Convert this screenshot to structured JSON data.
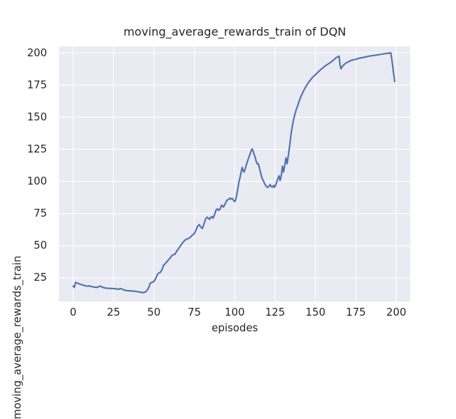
{
  "chart_data": {
    "type": "line",
    "title": "moving_average_rewards_train of DQN",
    "xlabel": "episodes",
    "ylabel": "moving_average_rewards_train",
    "x_ticks": [
      0,
      25,
      50,
      75,
      100,
      125,
      150,
      175,
      200
    ],
    "y_ticks": [
      25,
      50,
      75,
      100,
      125,
      150,
      175,
      200
    ],
    "xlim": [
      -8.8,
      208.6
    ],
    "ylim": [
      6.5,
      205.0
    ],
    "grid": true,
    "legend": null,
    "style": {
      "figure_background": "#ffffff",
      "axes_background": "#eaeaf2",
      "grid_color": "#ffffff",
      "text_color": "#262626",
      "line_color": "#4c72b0"
    },
    "series": [
      {
        "name": "moving_average_rewards_train",
        "color": "#4c72b0",
        "points": [
          [
            0,
            18.6
          ],
          [
            0.7,
            17.6
          ],
          [
            1.5,
            21.4
          ],
          [
            2.5,
            21.0
          ],
          [
            4,
            20.2
          ],
          [
            5,
            19.8
          ],
          [
            6,
            19.4
          ],
          [
            7,
            19.0
          ],
          [
            8,
            18.7
          ],
          [
            9,
            18.5
          ],
          [
            10,
            18.8
          ],
          [
            11,
            18.3
          ],
          [
            12,
            18.0
          ],
          [
            13,
            17.8
          ],
          [
            14,
            17.7
          ],
          [
            15,
            17.6
          ],
          [
            16,
            18.3
          ],
          [
            17,
            18.5
          ],
          [
            18,
            17.8
          ],
          [
            19,
            17.3
          ],
          [
            20,
            17.1
          ],
          [
            21,
            16.9
          ],
          [
            22,
            16.8
          ],
          [
            23,
            16.8
          ],
          [
            24,
            16.7
          ],
          [
            25,
            16.7
          ],
          [
            26,
            16.5
          ],
          [
            27,
            16.3
          ],
          [
            28,
            16.1
          ],
          [
            29,
            16.7
          ],
          [
            30,
            16.4
          ],
          [
            31,
            15.8
          ],
          [
            32,
            15.3
          ],
          [
            33,
            15.1
          ],
          [
            34,
            15.0
          ],
          [
            35,
            14.9
          ],
          [
            36,
            14.8
          ],
          [
            37,
            14.7
          ],
          [
            38,
            14.6
          ],
          [
            39,
            14.4
          ],
          [
            40,
            14.2
          ],
          [
            41,
            14.0
          ],
          [
            42,
            13.8
          ],
          [
            43,
            13.5
          ],
          [
            44,
            13.7
          ],
          [
            45,
            14.2
          ],
          [
            46,
            15.8
          ],
          [
            47,
            18.0
          ],
          [
            47.5,
            20.4
          ],
          [
            48,
            21.0
          ],
          [
            49,
            21.6
          ],
          [
            50,
            22.2
          ],
          [
            51,
            24.3
          ],
          [
            52,
            27.3
          ],
          [
            53,
            28.8
          ],
          [
            54,
            29.2
          ],
          [
            55,
            31.3
          ],
          [
            56,
            35.0
          ],
          [
            57,
            35.9
          ],
          [
            58,
            37.6
          ],
          [
            59,
            39.0
          ],
          [
            60,
            40.3
          ],
          [
            61,
            42.1
          ],
          [
            62,
            43.0
          ],
          [
            63,
            43.3
          ],
          [
            64,
            45.6
          ],
          [
            65,
            47.3
          ],
          [
            66,
            49.1
          ],
          [
            67,
            51.0
          ],
          [
            68,
            52.6
          ],
          [
            69,
            54.1
          ],
          [
            70,
            55.0
          ],
          [
            71,
            55.4
          ],
          [
            72,
            56.1
          ],
          [
            73,
            57.2
          ],
          [
            74,
            58.4
          ],
          [
            75,
            59.4
          ],
          [
            76,
            62.1
          ],
          [
            77,
            65.0
          ],
          [
            78,
            66.4
          ],
          [
            79,
            64.5
          ],
          [
            80,
            63.4
          ],
          [
            81,
            67.0
          ],
          [
            82,
            70.8
          ],
          [
            83,
            72.2
          ],
          [
            84,
            71.0
          ],
          [
            84.5,
            70.4
          ],
          [
            85,
            71.9
          ],
          [
            86,
            72.6
          ],
          [
            86.6,
            71.3
          ],
          [
            87.5,
            74.1
          ],
          [
            88.5,
            77.8
          ],
          [
            89.3,
            78.7
          ],
          [
            90,
            77.4
          ],
          [
            91,
            78.5
          ],
          [
            91.5,
            80.5
          ],
          [
            92,
            81.5
          ],
          [
            93,
            80.0
          ],
          [
            93.7,
            81.5
          ],
          [
            94.5,
            83.7
          ],
          [
            95,
            85.2
          ],
          [
            96,
            85.8
          ],
          [
            97,
            87.0
          ],
          [
            97.7,
            86.2
          ],
          [
            98.4,
            86.8
          ],
          [
            99.2,
            85.4
          ],
          [
            100,
            84.2
          ],
          [
            100.7,
            86.0
          ],
          [
            101.3,
            90.0
          ],
          [
            102,
            95.0
          ],
          [
            102.6,
            99.5
          ],
          [
            103.3,
            103.0
          ],
          [
            104,
            107.5
          ],
          [
            104.6,
            110.8
          ],
          [
            105.2,
            108.5
          ],
          [
            105.7,
            107.2
          ],
          [
            106.3,
            109.0
          ],
          [
            107,
            112.0
          ],
          [
            107.6,
            114.5
          ],
          [
            108.3,
            117.0
          ],
          [
            109,
            119.5
          ],
          [
            109.7,
            122.0
          ],
          [
            110.3,
            124.2
          ],
          [
            110.8,
            125.3
          ],
          [
            111.4,
            123.5
          ],
          [
            112,
            121.0
          ],
          [
            112.6,
            119.0
          ],
          [
            113.3,
            115.5
          ],
          [
            114,
            113.5
          ],
          [
            114.6,
            113.8
          ],
          [
            115.2,
            111.0
          ],
          [
            116,
            106.5
          ],
          [
            116.8,
            103.0
          ],
          [
            117.5,
            101.0
          ],
          [
            118.3,
            98.8
          ],
          [
            119,
            97.2
          ],
          [
            119.8,
            95.8
          ],
          [
            120.5,
            95.3
          ],
          [
            121.2,
            96.2
          ],
          [
            121.9,
            97.5
          ],
          [
            122.6,
            96.0
          ],
          [
            123.3,
            95.6
          ],
          [
            124,
            96.8
          ],
          [
            124.6,
            95.4
          ],
          [
            125.3,
            97.0
          ],
          [
            126,
            99.5
          ],
          [
            126.8,
            102.5
          ],
          [
            127.4,
            104.4
          ],
          [
            128.1,
            100.7
          ],
          [
            128.8,
            104.0
          ],
          [
            129.5,
            111.8
          ],
          [
            130.2,
            107.2
          ],
          [
            131,
            112.5
          ],
          [
            131.7,
            118.3
          ],
          [
            132.4,
            113.7
          ],
          [
            133.2,
            120.1
          ],
          [
            134,
            127.5
          ],
          [
            135,
            138.0
          ],
          [
            136,
            145.5
          ],
          [
            137,
            151.0
          ],
          [
            138,
            155.5
          ],
          [
            139,
            159.0
          ],
          [
            140,
            162.8
          ],
          [
            141,
            166.0
          ],
          [
            142,
            168.8
          ],
          [
            143,
            171.3
          ],
          [
            144,
            173.6
          ],
          [
            145,
            175.6
          ],
          [
            146,
            177.4
          ],
          [
            147,
            179.1
          ],
          [
            148,
            180.6
          ],
          [
            149,
            181.9
          ],
          [
            150,
            183.0
          ],
          [
            151,
            184.3
          ],
          [
            152,
            185.5
          ],
          [
            153,
            186.6
          ],
          [
            154,
            187.7
          ],
          [
            155,
            188.7
          ],
          [
            156,
            189.7
          ],
          [
            157,
            190.6
          ],
          [
            158,
            191.4
          ],
          [
            159,
            192.2
          ],
          [
            160,
            193.2
          ],
          [
            161,
            194.2
          ],
          [
            162,
            195.3
          ],
          [
            163,
            196.3
          ],
          [
            164,
            197.0
          ],
          [
            164.6,
            197.3
          ],
          [
            165.2,
            190.3
          ],
          [
            165.8,
            187.5
          ],
          [
            166.5,
            189.2
          ],
          [
            167.3,
            190.4
          ],
          [
            168,
            191.1
          ],
          [
            169,
            192.1
          ],
          [
            170,
            192.8
          ],
          [
            171,
            193.4
          ],
          [
            172,
            194.0
          ],
          [
            173,
            194.4
          ],
          [
            174,
            194.7
          ],
          [
            175,
            194.9
          ],
          [
            176,
            195.3
          ],
          [
            177,
            195.7
          ],
          [
            178,
            196.0
          ],
          [
            179,
            196.2
          ],
          [
            180,
            196.5
          ],
          [
            181,
            196.7
          ],
          [
            182,
            197.0
          ],
          [
            183,
            197.3
          ],
          [
            184,
            197.5
          ],
          [
            185,
            197.7
          ],
          [
            186,
            197.9
          ],
          [
            187,
            198.1
          ],
          [
            188,
            198.3
          ],
          [
            189,
            198.5
          ],
          [
            190,
            198.7
          ],
          [
            191,
            198.9
          ],
          [
            192,
            199.1
          ],
          [
            193,
            199.3
          ],
          [
            194,
            199.5
          ],
          [
            195,
            199.6
          ],
          [
            196,
            199.8
          ],
          [
            196.6,
            199.9
          ],
          [
            197.3,
            194.0
          ],
          [
            198,
            187.0
          ],
          [
            198.6,
            181.5
          ],
          [
            199,
            177.5
          ]
        ]
      }
    ]
  }
}
